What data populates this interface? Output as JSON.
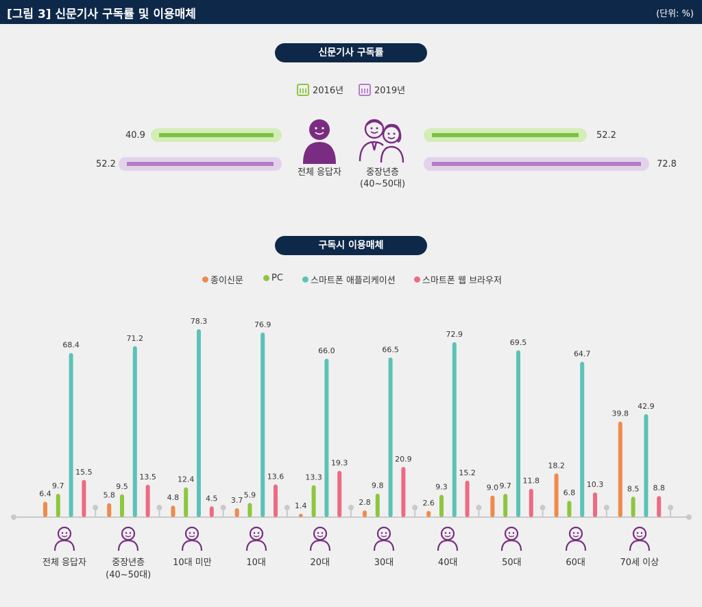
{
  "header": {
    "title": "[그림 3]  신문기사 구독률 및 이용매체",
    "unit": "(단위: %)"
  },
  "section1": {
    "title": "신문기사 구독률",
    "legend": [
      {
        "label": "2016년",
        "color": "#8dc63f"
      },
      {
        "label": "2019년",
        "color": "#b47cc7"
      }
    ],
    "all": {
      "label": "전체 응답자",
      "v2016": "40.9",
      "v2019": "52.2"
    },
    "middle": {
      "label_line1": "중장년층",
      "label_line2": "(40~50대)",
      "v2016": "52.2",
      "v2019": "72.8"
    }
  },
  "section2": {
    "title": "구독시 이용매체",
    "legend": [
      {
        "label": "종이신문",
        "color": "#f08a4b"
      },
      {
        "label": "PC",
        "color": "#8dc63f"
      },
      {
        "label": "스마트폰 애플리케이션",
        "color": "#5bc2b8"
      },
      {
        "label": "스마트폰  웹 브라우저",
        "color": "#ee6a80"
      }
    ]
  },
  "chart_data": {
    "type": "bar",
    "title": "구독시 이용매체",
    "categories": [
      "전체 응답자",
      "중장년층 (40~50대)",
      "10대 미만",
      "10대",
      "20대",
      "30대",
      "40대",
      "50대",
      "60대",
      "70세 이상"
    ],
    "category_lines": [
      [
        "전체 응답자"
      ],
      [
        "중장년층",
        "(40~50대)"
      ],
      [
        "10대 미만"
      ],
      [
        "10대"
      ],
      [
        "20대"
      ],
      [
        "30대"
      ],
      [
        "40대"
      ],
      [
        "50대"
      ],
      [
        "60대"
      ],
      [
        "70세 이상"
      ]
    ],
    "series": [
      {
        "name": "종이신문",
        "color": "#f08a4b",
        "values": [
          6.4,
          5.8,
          4.8,
          3.7,
          1.4,
          2.8,
          2.6,
          9.0,
          18.2,
          39.8
        ]
      },
      {
        "name": "PC",
        "color": "#8dc63f",
        "values": [
          9.7,
          9.5,
          12.4,
          5.9,
          13.3,
          9.8,
          9.3,
          9.7,
          6.8,
          8.5
        ]
      },
      {
        "name": "스마트폰 애플리케이션",
        "color": "#5bc2b8",
        "values": [
          68.4,
          71.2,
          78.3,
          76.9,
          66.0,
          66.5,
          72.9,
          69.5,
          64.7,
          42.9
        ]
      },
      {
        "name": "스마트폰  웹 브라우저",
        "color": "#ee6a80",
        "values": [
          15.5,
          13.5,
          4.5,
          13.6,
          19.3,
          20.9,
          15.2,
          11.8,
          10.3,
          8.8
        ]
      }
    ],
    "value_labels": [
      [
        "6.4",
        "5.8",
        "4.8",
        "3.7",
        "1.4",
        "2.8",
        "2.6",
        "9.0",
        "18.2",
        "39.8"
      ],
      [
        "9.7",
        "9.5",
        "12.4",
        "5.9",
        "13.3",
        "9.8",
        "9.3",
        "9.7",
        "6.8",
        "8.5"
      ],
      [
        "68.4",
        "71.2",
        "78.3",
        "76.9",
        "66.0",
        "66.5",
        "72.9",
        "69.5",
        "64.7",
        "42.9"
      ],
      [
        "15.5",
        "13.5",
        "4.5",
        "13.6",
        "19.3",
        "20.9",
        "15.2",
        "11.8",
        "10.3",
        "8.8"
      ]
    ],
    "xlabel": "",
    "ylabel": "%",
    "ylim": [
      0,
      80
    ],
    "legend": "top-center",
    "grid": false
  }
}
